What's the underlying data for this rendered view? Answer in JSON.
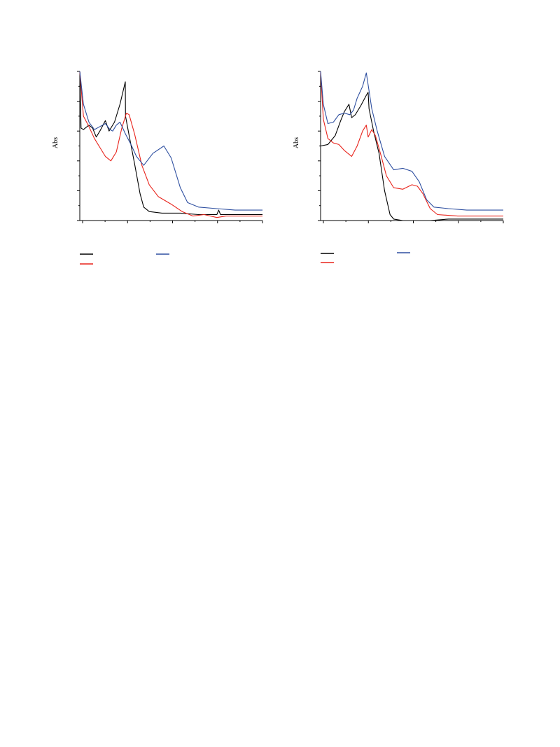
{
  "chart_data": [
    {
      "type": "line",
      "ylabel": "Abs",
      "xlim": [
        0,
        1
      ],
      "ylim": [
        0,
        1
      ],
      "x_ticks_major": 5,
      "x_ticks_minor": 9,
      "y_ticks": 11,
      "grid": false,
      "legend": "below",
      "series": [
        {
          "color": "#000000",
          "points": [
            [
              0,
              1.0
            ],
            [
              0.007,
              0.62
            ],
            [
              0.02,
              0.61
            ],
            [
              0.05,
              0.64
            ],
            [
              0.07,
              0.62
            ],
            [
              0.09,
              0.56
            ],
            [
              0.11,
              0.6
            ],
            [
              0.14,
              0.67
            ],
            [
              0.16,
              0.6
            ],
            [
              0.19,
              0.66
            ],
            [
              0.22,
              0.78
            ],
            [
              0.249,
              0.93
            ],
            [
              0.25,
              0.7
            ],
            [
              0.27,
              0.57
            ],
            [
              0.3,
              0.38
            ],
            [
              0.33,
              0.18
            ],
            [
              0.35,
              0.09
            ],
            [
              0.38,
              0.06
            ],
            [
              0.45,
              0.05
            ],
            [
              0.55,
              0.05
            ],
            [
              0.65,
              0.04
            ],
            [
              0.75,
              0.04
            ],
            [
              0.76,
              0.07
            ],
            [
              0.77,
              0.04
            ],
            [
              0.85,
              0.04
            ],
            [
              1.0,
              0.04
            ]
          ]
        },
        {
          "color": "#e8241c",
          "points": [
            [
              0,
              1.0
            ],
            [
              0.02,
              0.7
            ],
            [
              0.05,
              0.63
            ],
            [
              0.08,
              0.55
            ],
            [
              0.11,
              0.49
            ],
            [
              0.14,
              0.43
            ],
            [
              0.17,
              0.4
            ],
            [
              0.2,
              0.46
            ],
            [
              0.23,
              0.62
            ],
            [
              0.255,
              0.72
            ],
            [
              0.27,
              0.71
            ],
            [
              0.3,
              0.58
            ],
            [
              0.34,
              0.37
            ],
            [
              0.38,
              0.24
            ],
            [
              0.43,
              0.16
            ],
            [
              0.5,
              0.11
            ],
            [
              0.56,
              0.06
            ],
            [
              0.62,
              0.03
            ],
            [
              0.68,
              0.04
            ],
            [
              0.75,
              0.02
            ],
            [
              0.8,
              0.03
            ],
            [
              0.9,
              0.03
            ],
            [
              1.0,
              0.03
            ]
          ]
        },
        {
          "color": "#2e4fa0",
          "points": [
            [
              0,
              1.0
            ],
            [
              0.02,
              0.78
            ],
            [
              0.05,
              0.66
            ],
            [
              0.08,
              0.61
            ],
            [
              0.11,
              0.63
            ],
            [
              0.14,
              0.65
            ],
            [
              0.165,
              0.61
            ],
            [
              0.18,
              0.6
            ],
            [
              0.2,
              0.64
            ],
            [
              0.22,
              0.66
            ],
            [
              0.25,
              0.58
            ],
            [
              0.28,
              0.51
            ],
            [
              0.31,
              0.43
            ],
            [
              0.35,
              0.37
            ],
            [
              0.4,
              0.45
            ],
            [
              0.46,
              0.5
            ],
            [
              0.5,
              0.42
            ],
            [
              0.55,
              0.22
            ],
            [
              0.59,
              0.12
            ],
            [
              0.65,
              0.09
            ],
            [
              0.75,
              0.08
            ],
            [
              0.85,
              0.07
            ],
            [
              0.95,
              0.07
            ],
            [
              1.0,
              0.07
            ]
          ]
        }
      ]
    },
    {
      "type": "line",
      "ylabel": "Abs",
      "xlim": [
        0,
        1
      ],
      "ylim": [
        0,
        1
      ],
      "x_ticks_major": 5,
      "x_ticks_minor": 9,
      "y_ticks": 11,
      "grid": false,
      "legend": "below",
      "series": [
        {
          "color": "#000000",
          "points": [
            [
              0,
              0.5
            ],
            [
              0.04,
              0.51
            ],
            [
              0.08,
              0.57
            ],
            [
              0.11,
              0.67
            ],
            [
              0.13,
              0.73
            ],
            [
              0.155,
              0.78
            ],
            [
              0.17,
              0.69
            ],
            [
              0.19,
              0.71
            ],
            [
              0.22,
              0.77
            ],
            [
              0.25,
              0.84
            ],
            [
              0.26,
              0.86
            ],
            [
              0.265,
              0.75
            ],
            [
              0.29,
              0.6
            ],
            [
              0.32,
              0.45
            ],
            [
              0.35,
              0.2
            ],
            [
              0.38,
              0.04
            ],
            [
              0.4,
              0.01
            ],
            [
              0.45,
              0.0
            ],
            [
              0.5,
              0.0
            ],
            [
              0.6,
              0.0
            ],
            [
              0.7,
              0.01
            ],
            [
              0.8,
              0.01
            ],
            [
              0.9,
              0.01
            ],
            [
              1.0,
              0.01
            ]
          ]
        },
        {
          "color": "#e8241c",
          "points": [
            [
              0,
              1.0
            ],
            [
              0.015,
              0.68
            ],
            [
              0.04,
              0.55
            ],
            [
              0.07,
              0.52
            ],
            [
              0.1,
              0.51
            ],
            [
              0.13,
              0.47
            ],
            [
              0.17,
              0.43
            ],
            [
              0.2,
              0.5
            ],
            [
              0.23,
              0.6
            ],
            [
              0.25,
              0.64
            ],
            [
              0.26,
              0.56
            ],
            [
              0.28,
              0.61
            ],
            [
              0.3,
              0.57
            ],
            [
              0.33,
              0.44
            ],
            [
              0.36,
              0.3
            ],
            [
              0.4,
              0.22
            ],
            [
              0.45,
              0.21
            ],
            [
              0.5,
              0.24
            ],
            [
              0.53,
              0.23
            ],
            [
              0.56,
              0.18
            ],
            [
              0.6,
              0.08
            ],
            [
              0.64,
              0.04
            ],
            [
              0.75,
              0.03
            ],
            [
              0.85,
              0.03
            ],
            [
              1.0,
              0.03
            ]
          ]
        },
        {
          "color": "#2e4fa0",
          "points": [
            [
              0,
              1.0
            ],
            [
              0.015,
              0.78
            ],
            [
              0.04,
              0.65
            ],
            [
              0.07,
              0.66
            ],
            [
              0.1,
              0.71
            ],
            [
              0.13,
              0.72
            ],
            [
              0.16,
              0.71
            ],
            [
              0.18,
              0.74
            ],
            [
              0.2,
              0.82
            ],
            [
              0.23,
              0.9
            ],
            [
              0.25,
              0.99
            ],
            [
              0.265,
              0.87
            ],
            [
              0.28,
              0.75
            ],
            [
              0.31,
              0.6
            ],
            [
              0.35,
              0.43
            ],
            [
              0.4,
              0.34
            ],
            [
              0.45,
              0.35
            ],
            [
              0.5,
              0.33
            ],
            [
              0.54,
              0.26
            ],
            [
              0.58,
              0.14
            ],
            [
              0.62,
              0.09
            ],
            [
              0.7,
              0.08
            ],
            [
              0.8,
              0.07
            ],
            [
              0.9,
              0.07
            ],
            [
              1.0,
              0.07
            ]
          ]
        }
      ]
    }
  ]
}
